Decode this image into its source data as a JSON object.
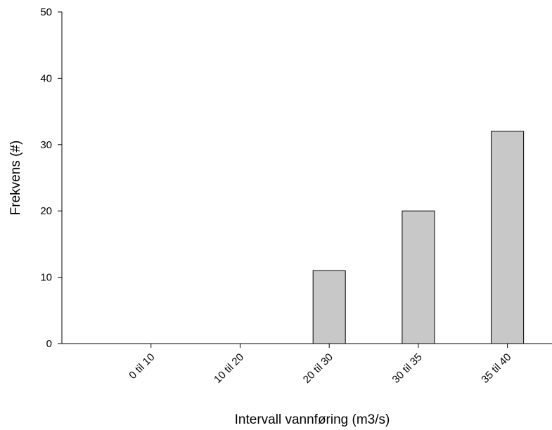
{
  "chart_data": {
    "type": "bar",
    "categories": [
      "0 til 10",
      "10 til 20",
      "20 til 30",
      "30 til 35",
      "35 til 40"
    ],
    "values": [
      0,
      0,
      11,
      20,
      32
    ],
    "xlabel": "Intervall vannføring (m3/s)",
    "ylabel": "Frekvens (#)",
    "ylim": [
      0,
      50
    ],
    "yticks": [
      0,
      10,
      20,
      30,
      40,
      50
    ],
    "grid": false,
    "bar_color": "#c8c8c8",
    "bar_edge_color": "#000000"
  }
}
